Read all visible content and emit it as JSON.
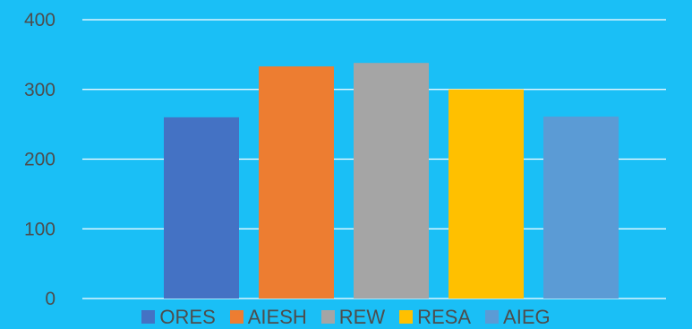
{
  "chart_data": {
    "type": "bar",
    "title": "",
    "xlabel": "",
    "ylabel": "",
    "ylim": [
      0,
      400
    ],
    "yticks": [
      0,
      100,
      200,
      300,
      400
    ],
    "grid": true,
    "legend_position": "bottom",
    "categories": [
      "ORES",
      "AIESH",
      "REW",
      "RESA",
      "AIEG"
    ],
    "values": [
      260,
      333,
      338,
      300,
      261
    ],
    "colors": [
      "#4472C4",
      "#ED7D31",
      "#A5A5A5",
      "#FFC000",
      "#5B9BD5"
    ],
    "background": "#1ABFF6",
    "gridline_color": "#FFFFFF"
  }
}
